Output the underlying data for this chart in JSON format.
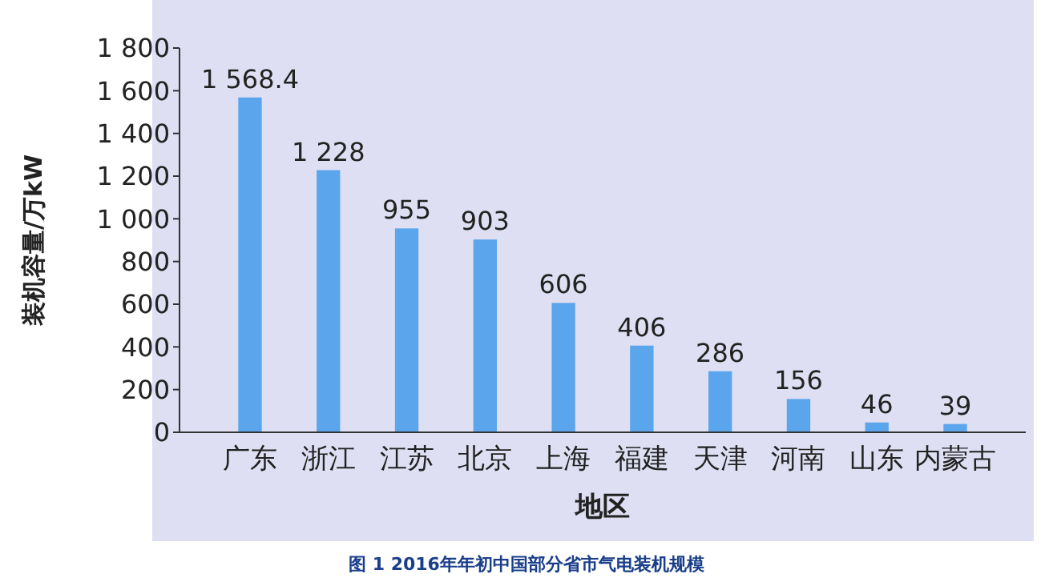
{
  "chart_data": {
    "type": "bar",
    "xlabel": "地区",
    "ylabel": "装机容量/万kW",
    "categories": [
      "广东",
      "浙江",
      "江苏",
      "北京",
      "上海",
      "福建",
      "天津",
      "河南",
      "山东",
      "内蒙古"
    ],
    "values": [
      1568.4,
      1228,
      955,
      903,
      606,
      406,
      286,
      156,
      46,
      39
    ],
    "value_labels": [
      "1 568.4",
      "1 228",
      "955",
      "903",
      "606",
      "406",
      "286",
      "156",
      "46",
      "39"
    ],
    "color": "#5aa5ec",
    "ylim": [
      0,
      1800
    ],
    "yticks": [
      0,
      200,
      400,
      600,
      800,
      {
        "value": 1000,
        "label": "1 000"
      },
      {
        "value": 1200,
        "label": "1 200"
      },
      {
        "value": 1400,
        "label": "1 400"
      },
      {
        "value": 1600,
        "label": "1 600"
      },
      {
        "value": 1800,
        "label": "1 800"
      }
    ],
    "grid": false,
    "annotations": [
      "图 1 2016年年初中国部分省市气电装机规模"
    ]
  }
}
